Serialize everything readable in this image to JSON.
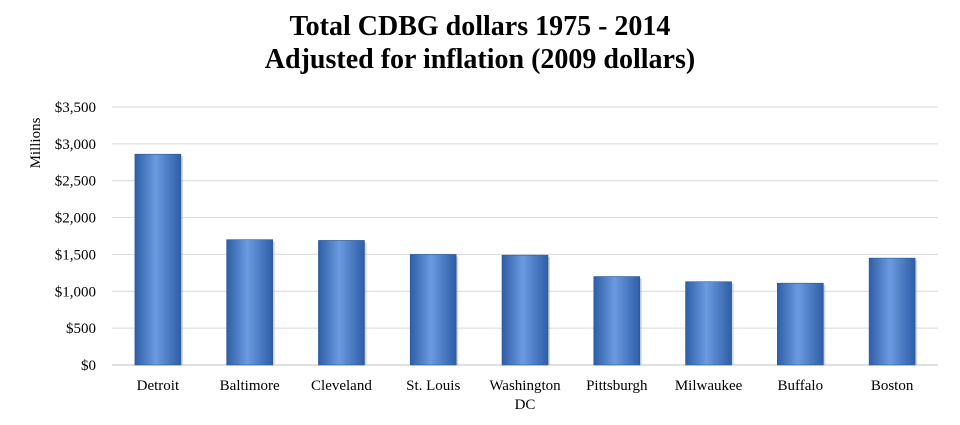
{
  "chart_data": {
    "type": "bar",
    "title": [
      "Total CDBG dollars 1975 - 2014",
      "Adjusted for inflation (2009 dollars)"
    ],
    "ylabel": "Millions",
    "xlabel": "",
    "categories": [
      [
        "Detroit"
      ],
      [
        "Baltimore"
      ],
      [
        "Cleveland"
      ],
      [
        "St. Louis"
      ],
      [
        "Washington",
        "DC"
      ],
      [
        "Pittsburgh"
      ],
      [
        "Milwaukee"
      ],
      [
        "Buffalo"
      ],
      [
        "Boston"
      ]
    ],
    "values": [
      2860,
      1700,
      1690,
      1500,
      1490,
      1200,
      1130,
      1110,
      1450
    ],
    "ylim": [
      0,
      3500
    ],
    "yticks": [
      0,
      500,
      1000,
      1500,
      2000,
      2500,
      3000,
      3500
    ],
    "ytick_labels": [
      "$0",
      "$500",
      "$1,000",
      "$1,500",
      "$2,000",
      "$2,500",
      "$3,000",
      "$3,500"
    ],
    "grid": true,
    "legend": "none",
    "colors": {
      "bar": "#4a7ecb",
      "bar_light": "#6b9ae0",
      "bar_dark": "#2e5ea7",
      "grid": "#d9d9d9",
      "axis": "#bfbfbf"
    }
  }
}
